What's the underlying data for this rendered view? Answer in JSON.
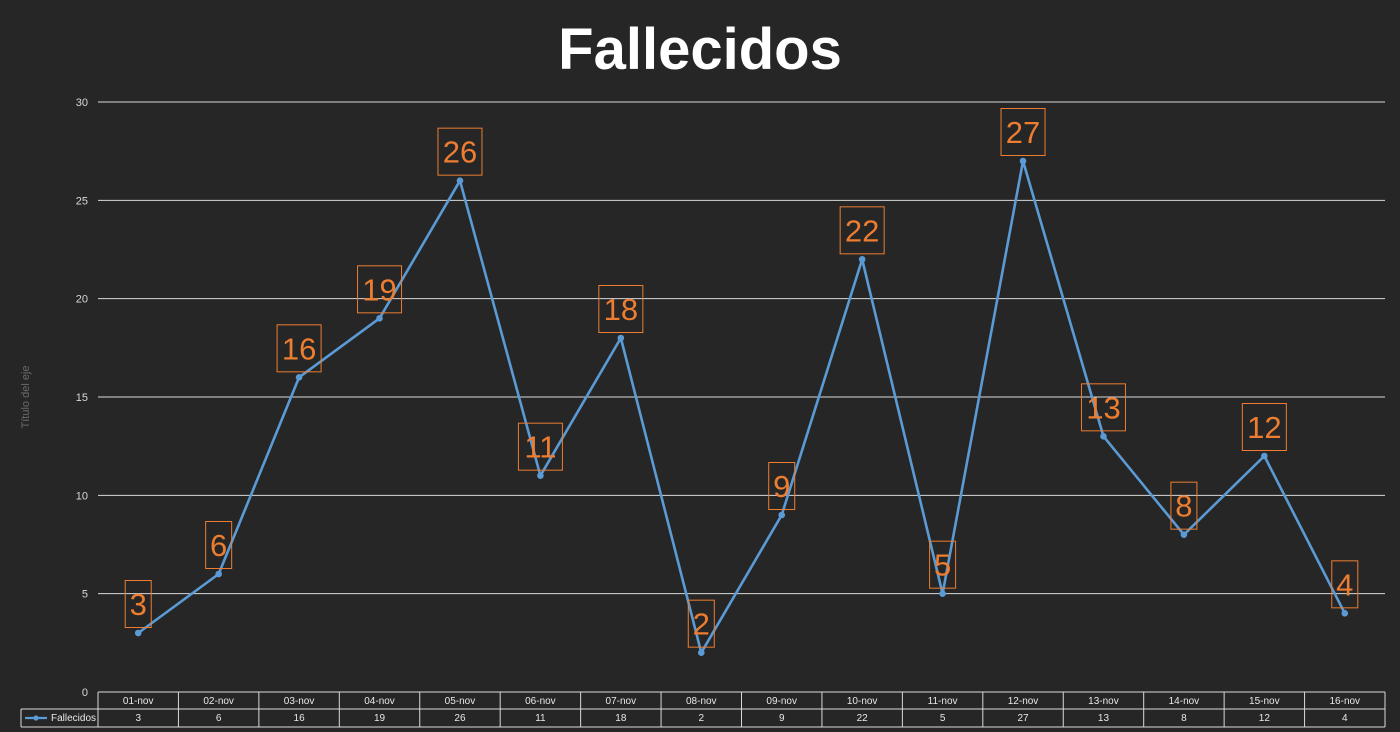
{
  "chart_data": {
    "type": "line",
    "title": "Fallecidos",
    "ylabel": "Título del eje",
    "xlabel": "",
    "ylim": [
      0,
      30
    ],
    "yticks": [
      0,
      5,
      10,
      15,
      20,
      25,
      30
    ],
    "grid": true,
    "legend": "data-table",
    "data_labels": true,
    "colors": {
      "series": "#5b9bd5",
      "labels": "#ed7d31",
      "background": "#262626"
    },
    "categories": [
      "01-nov",
      "02-nov",
      "03-nov",
      "04-nov",
      "05-nov",
      "06-nov",
      "07-nov",
      "08-nov",
      "09-nov",
      "10-nov",
      "11-nov",
      "12-nov",
      "13-nov",
      "14-nov",
      "15-nov",
      "16-nov"
    ],
    "series": [
      {
        "name": "Fallecidos",
        "values": [
          3,
          6,
          16,
          19,
          26,
          11,
          18,
          2,
          9,
          22,
          5,
          27,
          13,
          8,
          12,
          4
        ]
      }
    ]
  }
}
